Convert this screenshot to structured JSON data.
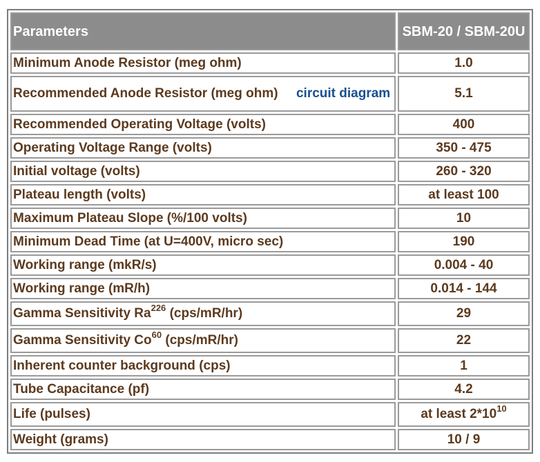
{
  "table": {
    "header": {
      "param": "Parameters",
      "value": "SBM-20 / SBM-20U"
    },
    "rows": [
      {
        "param": "Minimum Anode Resistor (meg ohm)",
        "value": "1.0"
      },
      {
        "param": "Recommended Anode Resistor (meg ohm)",
        "link": "circuit diagram",
        "value": "5.1"
      },
      {
        "param": "Recommended Operating Voltage (volts)",
        "value": "400"
      },
      {
        "param": "Operating Voltage Range (volts)",
        "value": "350 - 475"
      },
      {
        "param": "Initial voltage (volts)",
        "value": "260 - 320"
      },
      {
        "param": "Plateau length (volts)",
        "value": "at least 100"
      },
      {
        "param": "Maximum Plateau Slope (%/100 volts)",
        "value": "10"
      },
      {
        "param": "Minimum Dead Time (at U=400V, micro sec)",
        "value": "190"
      },
      {
        "param": "Working range (mkR/s)",
        "value": "0.004 - 40"
      },
      {
        "param": "Working range (mR/h)",
        "value": "0.014 - 144"
      },
      {
        "param_prefix": "Gamma Sensitivity Ra",
        "param_sup": "226",
        "param_suffix": " (cps/mR/hr)",
        "value": "29"
      },
      {
        "param_prefix": "Gamma Sensitivity Co",
        "param_sup": "60",
        "param_suffix": " (cps/mR/hr)",
        "value": "22"
      },
      {
        "param": "Inherent counter background (cps)",
        "value": "1"
      },
      {
        "param": "Tube Capacitance (pf)",
        "value": "4.2"
      },
      {
        "param": "Life (pulses)",
        "value_prefix": "at least 2*10",
        "value_sup": "10"
      },
      {
        "param": "Weight (grams)",
        "value": "10 / 9"
      }
    ]
  },
  "colors": {
    "header_bg": "#8c8c8c",
    "text": "#5c3a1e",
    "link": "#1a4f8f",
    "border": "#9a9a9a"
  }
}
